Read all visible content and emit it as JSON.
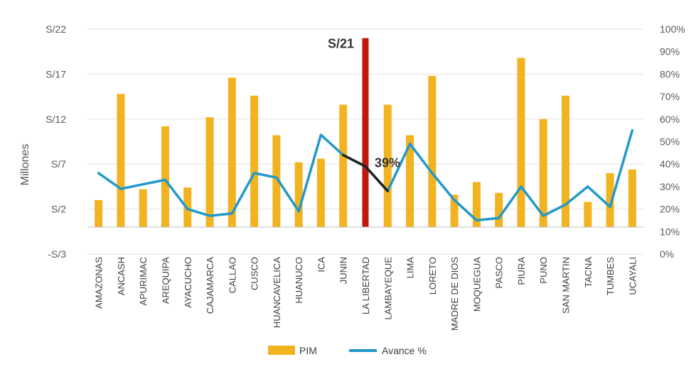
{
  "chart_data": {
    "type": "bar",
    "ylabel": "Millones",
    "left_ticks": [
      "-S/3",
      "S/2",
      "S/7",
      "S/12",
      "S/17",
      "S/22"
    ],
    "right_ticks": [
      "0%",
      "10%",
      "20%",
      "30%",
      "40%",
      "50%",
      "60%",
      "70%",
      "80%",
      "90%",
      "100%"
    ],
    "ylim": [
      -3,
      22
    ],
    "y2lim": [
      0,
      100
    ],
    "grid": true,
    "legend_position": "bottom",
    "categories": [
      "AMAZONAS",
      "ANCASH",
      "APURIMAC",
      "AREQUIPA",
      "AYACUCHO",
      "CAJAMARCA",
      "CALLAO",
      "CUSCO",
      "HUANCAVELICA",
      "HUANUCO",
      "ICA",
      "JUNIN",
      "LA LIBERTAD",
      "LAMBAYEQUE",
      "LIMA",
      "LORETO",
      "MADRE DE DIOS",
      "MOQUEGUA",
      "PASCO",
      "PIURA",
      "PUNO",
      "SAN MARTIN",
      "TACNA",
      "TUMBES",
      "UCAYALI"
    ],
    "series": [
      {
        "name": "PIM",
        "kind": "bar",
        "axis": "left",
        "color": "#F2B321",
        "highlight": {
          "index": 12,
          "color": "#C0180F"
        },
        "values": [
          3.0,
          14.8,
          4.2,
          11.2,
          4.4,
          12.2,
          16.6,
          14.6,
          10.2,
          7.2,
          7.6,
          13.6,
          21.0,
          13.6,
          10.2,
          16.8,
          3.6,
          5.0,
          3.8,
          18.8,
          12.0,
          14.6,
          2.8,
          6.0,
          6.4
        ]
      },
      {
        "name": "Avance %",
        "kind": "line",
        "axis": "right",
        "color": "#2299C9",
        "highlight_segment": {
          "from": 11,
          "to": 13,
          "color": "#222222"
        },
        "values": [
          36,
          29,
          31,
          33,
          20,
          17,
          18,
          36,
          34,
          19,
          53,
          44,
          39,
          28,
          49,
          36,
          24,
          15,
          16,
          30,
          17,
          22,
          30,
          21,
          55
        ]
      }
    ],
    "annotations": [
      {
        "text": "S/21",
        "index": 12,
        "series": "PIM"
      },
      {
        "text": "39%",
        "index": 12,
        "series": "Avance %"
      }
    ]
  }
}
